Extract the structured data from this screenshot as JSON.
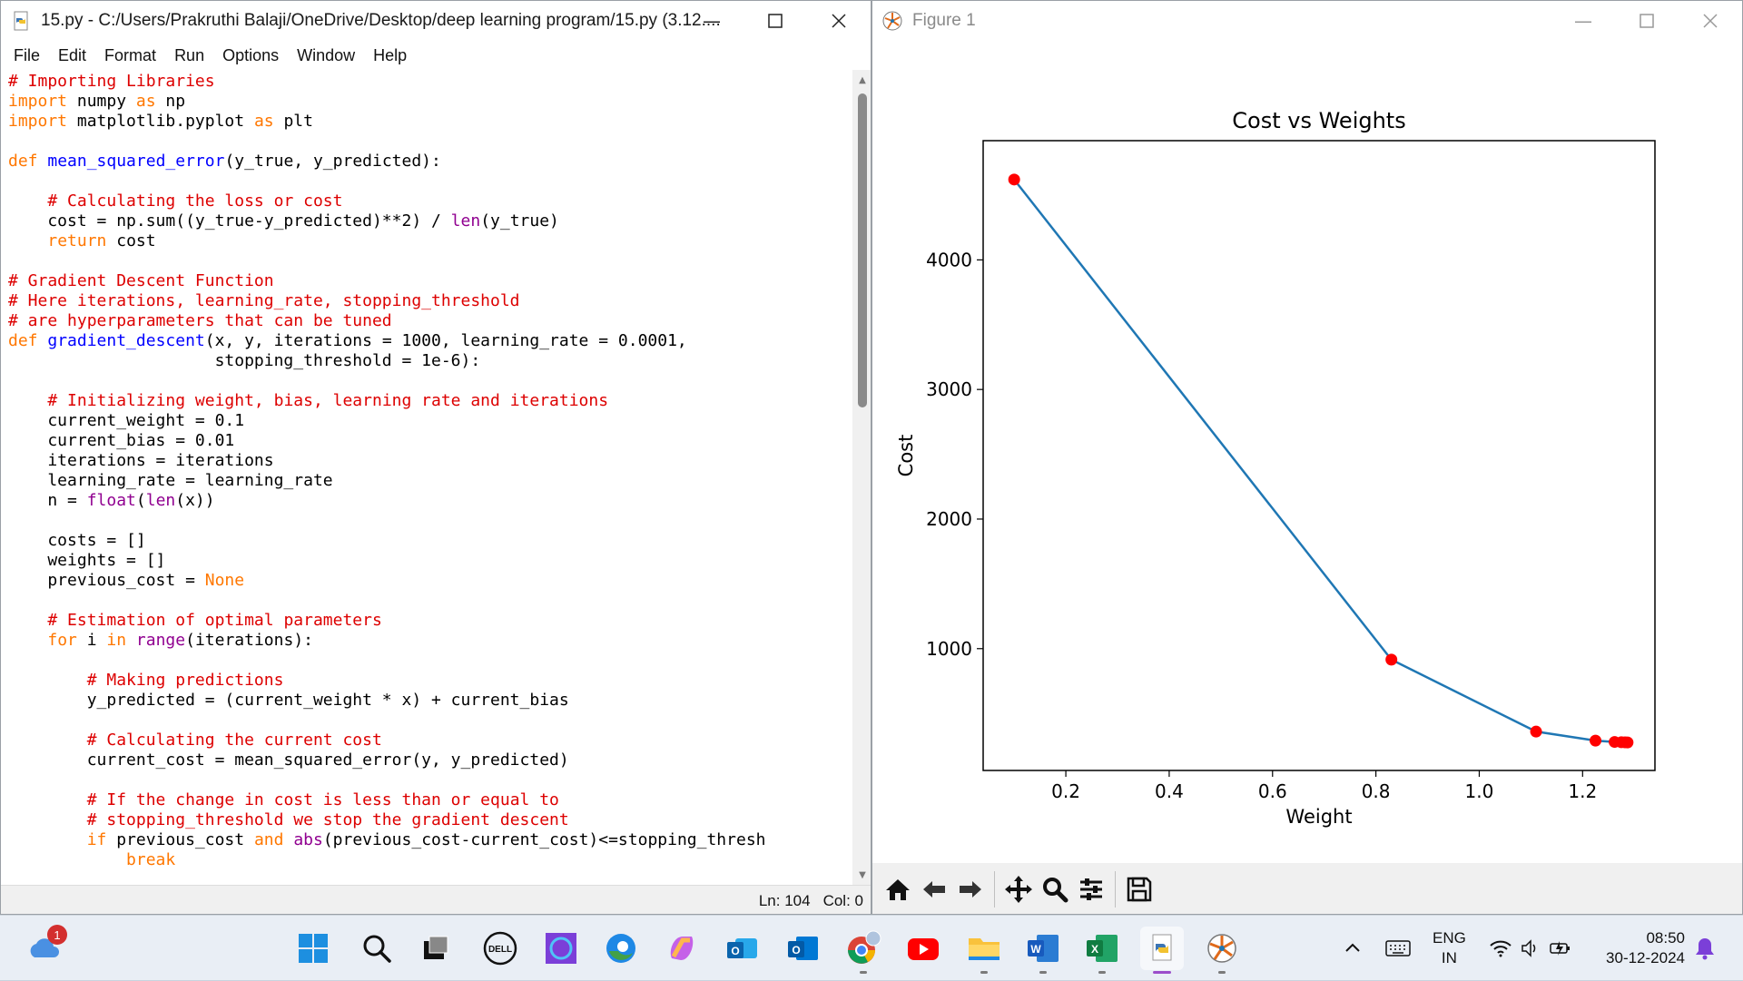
{
  "idle_window": {
    "title": "15.py - C:/Users/Prakruthi Balaji/OneDrive/Desktop/deep learning program/15.py (3.12....",
    "menu": [
      "File",
      "Edit",
      "Format",
      "Run",
      "Options",
      "Window",
      "Help"
    ],
    "status": {
      "line": "Ln: 104",
      "col": "Col: 0"
    }
  },
  "figure_window": {
    "title": "Figure 1"
  },
  "chart_data": {
    "type": "line",
    "title": "Cost vs Weights",
    "xlabel": "Weight",
    "ylabel": "Cost",
    "xlim": [
      0.04,
      1.34
    ],
    "ylim": [
      60,
      4920
    ],
    "xticks": [
      0.2,
      0.4,
      0.6,
      0.8,
      1.0,
      1.2
    ],
    "xtick_labels": [
      "0.2",
      "0.4",
      "0.6",
      "0.8",
      "1.0",
      "1.2"
    ],
    "yticks": [
      1000,
      2000,
      3000,
      4000
    ],
    "ytick_labels": [
      "1000",
      "2000",
      "3000",
      "4000"
    ],
    "series": [
      {
        "x": [
          0.1,
          0.83,
          1.11,
          1.225,
          1.262,
          1.275,
          1.282,
          1.287
        ],
        "y": [
          4620,
          915,
          360,
          290,
          280,
          278,
          277,
          276
        ],
        "line_color": "#1f77b4",
        "marker_color": "#ff0000"
      }
    ]
  },
  "taskbar": {
    "notification_badge": "1",
    "tray_lang_top": "ENG",
    "tray_lang_bottom": "IN",
    "time": "08:50",
    "date": "30-12-2024"
  }
}
